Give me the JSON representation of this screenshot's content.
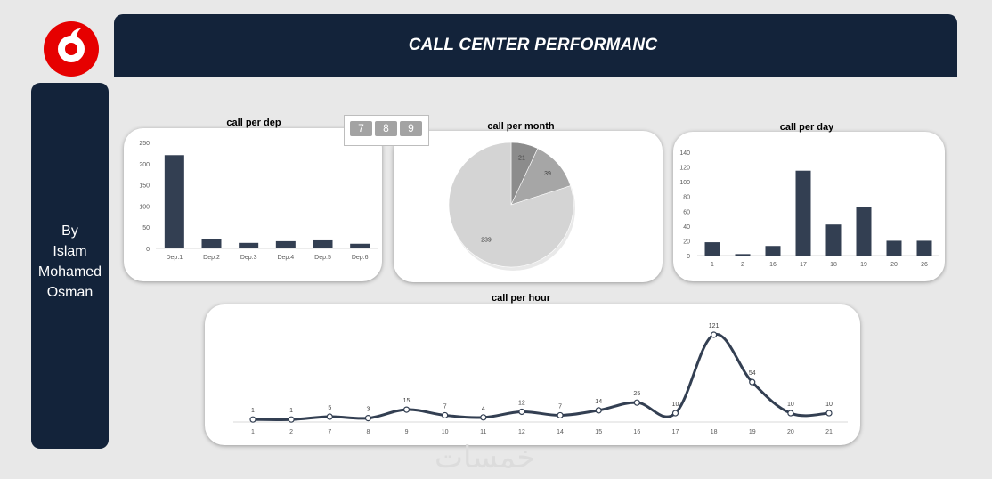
{
  "header": {
    "title": "CALL CENTER PERFORMANC"
  },
  "brand": {
    "logo_icon": "vodafone-logo-icon",
    "red": "#e60000",
    "navy": "#13233a"
  },
  "sidebar": {
    "author": [
      "By",
      "Islam",
      "Mohamed",
      "Osman"
    ]
  },
  "slicer": {
    "items": [
      "7",
      "8",
      "9"
    ]
  },
  "watermark": {
    "text": "خمسات"
  },
  "charts": {
    "dep": {
      "title": "call per dep"
    },
    "month": {
      "title": "call per month"
    },
    "day": {
      "title": "call per day"
    },
    "hour": {
      "title": "call per hour"
    }
  },
  "chart_data": [
    {
      "id": "dep",
      "type": "bar",
      "title": "call per dep",
      "categories": [
        "Dep.1",
        "Dep.2",
        "Dep.3",
        "Dep.4",
        "Dep.5",
        "Dep.6"
      ],
      "values": [
        220,
        22,
        13,
        17,
        19,
        11
      ],
      "ylim": [
        0,
        250
      ],
      "yticks": [
        0,
        50,
        100,
        150,
        200,
        250
      ],
      "color": "#333f52"
    },
    {
      "id": "month",
      "type": "pie",
      "title": "call per month",
      "labels": [
        "7",
        "8",
        "9"
      ],
      "values": [
        21,
        39,
        239
      ],
      "colors": [
        "#8c8c8c",
        "#a6a6a6",
        "#d4d4d4"
      ]
    },
    {
      "id": "day",
      "type": "bar",
      "title": "call per day",
      "categories": [
        "1",
        "2",
        "16",
        "17",
        "18",
        "19",
        "20",
        "26"
      ],
      "values": [
        18,
        2,
        13,
        115,
        42,
        66,
        20,
        20
      ],
      "ylim": [
        0,
        140
      ],
      "yticks": [
        0,
        20,
        40,
        60,
        80,
        100,
        120,
        140
      ],
      "color": "#333f52"
    },
    {
      "id": "hour",
      "type": "line",
      "title": "call per hour",
      "categories": [
        "1",
        "2",
        "7",
        "8",
        "9",
        "10",
        "11",
        "12",
        "14",
        "15",
        "16",
        "17",
        "18",
        "19",
        "20",
        "21"
      ],
      "values": [
        1,
        1,
        5,
        3,
        15,
        7,
        4,
        12,
        7,
        14,
        25,
        10,
        121,
        54,
        10,
        10
      ],
      "color": "#333f52"
    }
  ]
}
